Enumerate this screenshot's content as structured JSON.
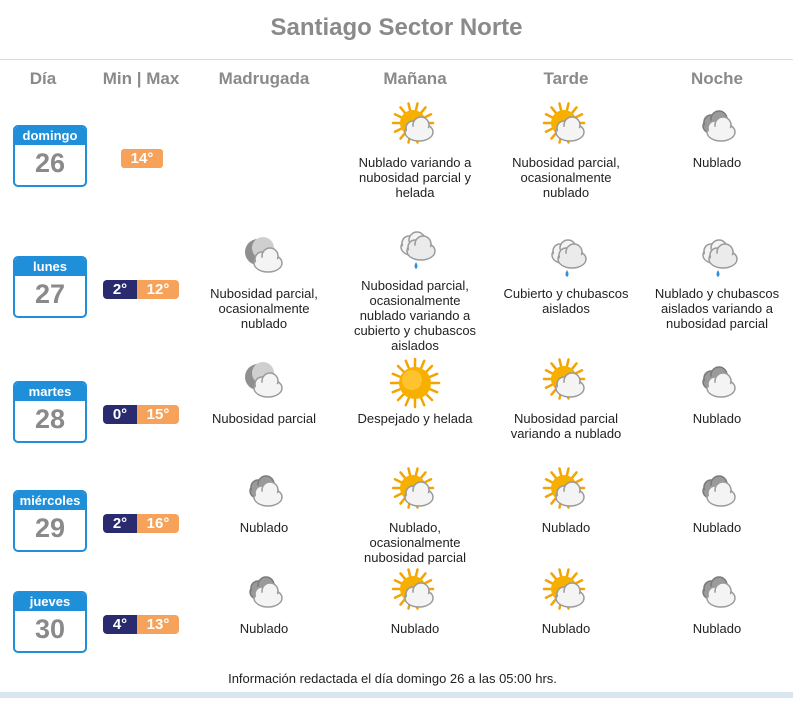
{
  "title": "Santiago Sector Norte",
  "headers": {
    "day": "Día",
    "minmax": "Min | Max",
    "madrugada": "Madrugada",
    "manana": "Mañana",
    "tarde": "Tarde",
    "noche": "Noche"
  },
  "colors": {
    "accent": "#1e8fd8",
    "min": "#2a2a6e",
    "max": "#f6a25a",
    "headerText": "#8a8a8a"
  },
  "days": [
    {
      "name": "domingo",
      "number": "26",
      "min": "",
      "max": "14°",
      "madrugada": {
        "icon": "",
        "text": ""
      },
      "manana": {
        "icon": "sun-cloud-icon",
        "text": "Nublado variando a nubosidad parcial y helada"
      },
      "tarde": {
        "icon": "sun-cloud-icon",
        "text": "Nubosidad parcial, ocasionalmente nublado"
      },
      "noche": {
        "icon": "cloudy-icon",
        "text": "Nublado"
      }
    },
    {
      "name": "lunes",
      "number": "27",
      "min": "2°",
      "max": "12°",
      "madrugada": {
        "icon": "moon-cloud-icon",
        "text": "Nubosidad parcial, ocasionalmente nublado"
      },
      "manana": {
        "icon": "rain-cloud-icon",
        "text": "Nubosidad parcial, ocasionalmente nublado variando a cubierto y chubascos aislados"
      },
      "tarde": {
        "icon": "rain-cloud-icon",
        "text": "Cubierto y chubascos aislados"
      },
      "noche": {
        "icon": "rain-cloud-icon",
        "text": "Nublado y chubascos aislados variando a nubosidad parcial"
      }
    },
    {
      "name": "martes",
      "number": "28",
      "min": "0°",
      "max": "15°",
      "madrugada": {
        "icon": "moon-cloud-icon",
        "text": "Nubosidad parcial"
      },
      "manana": {
        "icon": "sun-icon",
        "text": "Despejado y helada"
      },
      "tarde": {
        "icon": "sun-cloud-icon",
        "text": "Nubosidad parcial variando a nublado"
      },
      "noche": {
        "icon": "cloudy-icon",
        "text": "Nublado"
      }
    },
    {
      "name": "miércoles",
      "number": "29",
      "min": "2°",
      "max": "16°",
      "madrugada": {
        "icon": "cloudy-icon",
        "text": "Nublado"
      },
      "manana": {
        "icon": "sun-cloud-icon",
        "text": "Nublado, ocasionalmente nubosidad parcial"
      },
      "tarde": {
        "icon": "sun-cloud-icon",
        "text": "Nublado"
      },
      "noche": {
        "icon": "cloudy-icon",
        "text": "Nublado"
      }
    },
    {
      "name": "jueves",
      "number": "30",
      "min": "4°",
      "max": "13°",
      "madrugada": {
        "icon": "cloudy-icon",
        "text": "Nublado"
      },
      "manana": {
        "icon": "sun-cloud-icon",
        "text": "Nublado"
      },
      "tarde": {
        "icon": "sun-cloud-icon",
        "text": "Nublado"
      },
      "noche": {
        "icon": "cloudy-icon",
        "text": "Nublado"
      }
    }
  ],
  "footer": "Información redactada el día domingo 26 a las 05:00 hrs."
}
